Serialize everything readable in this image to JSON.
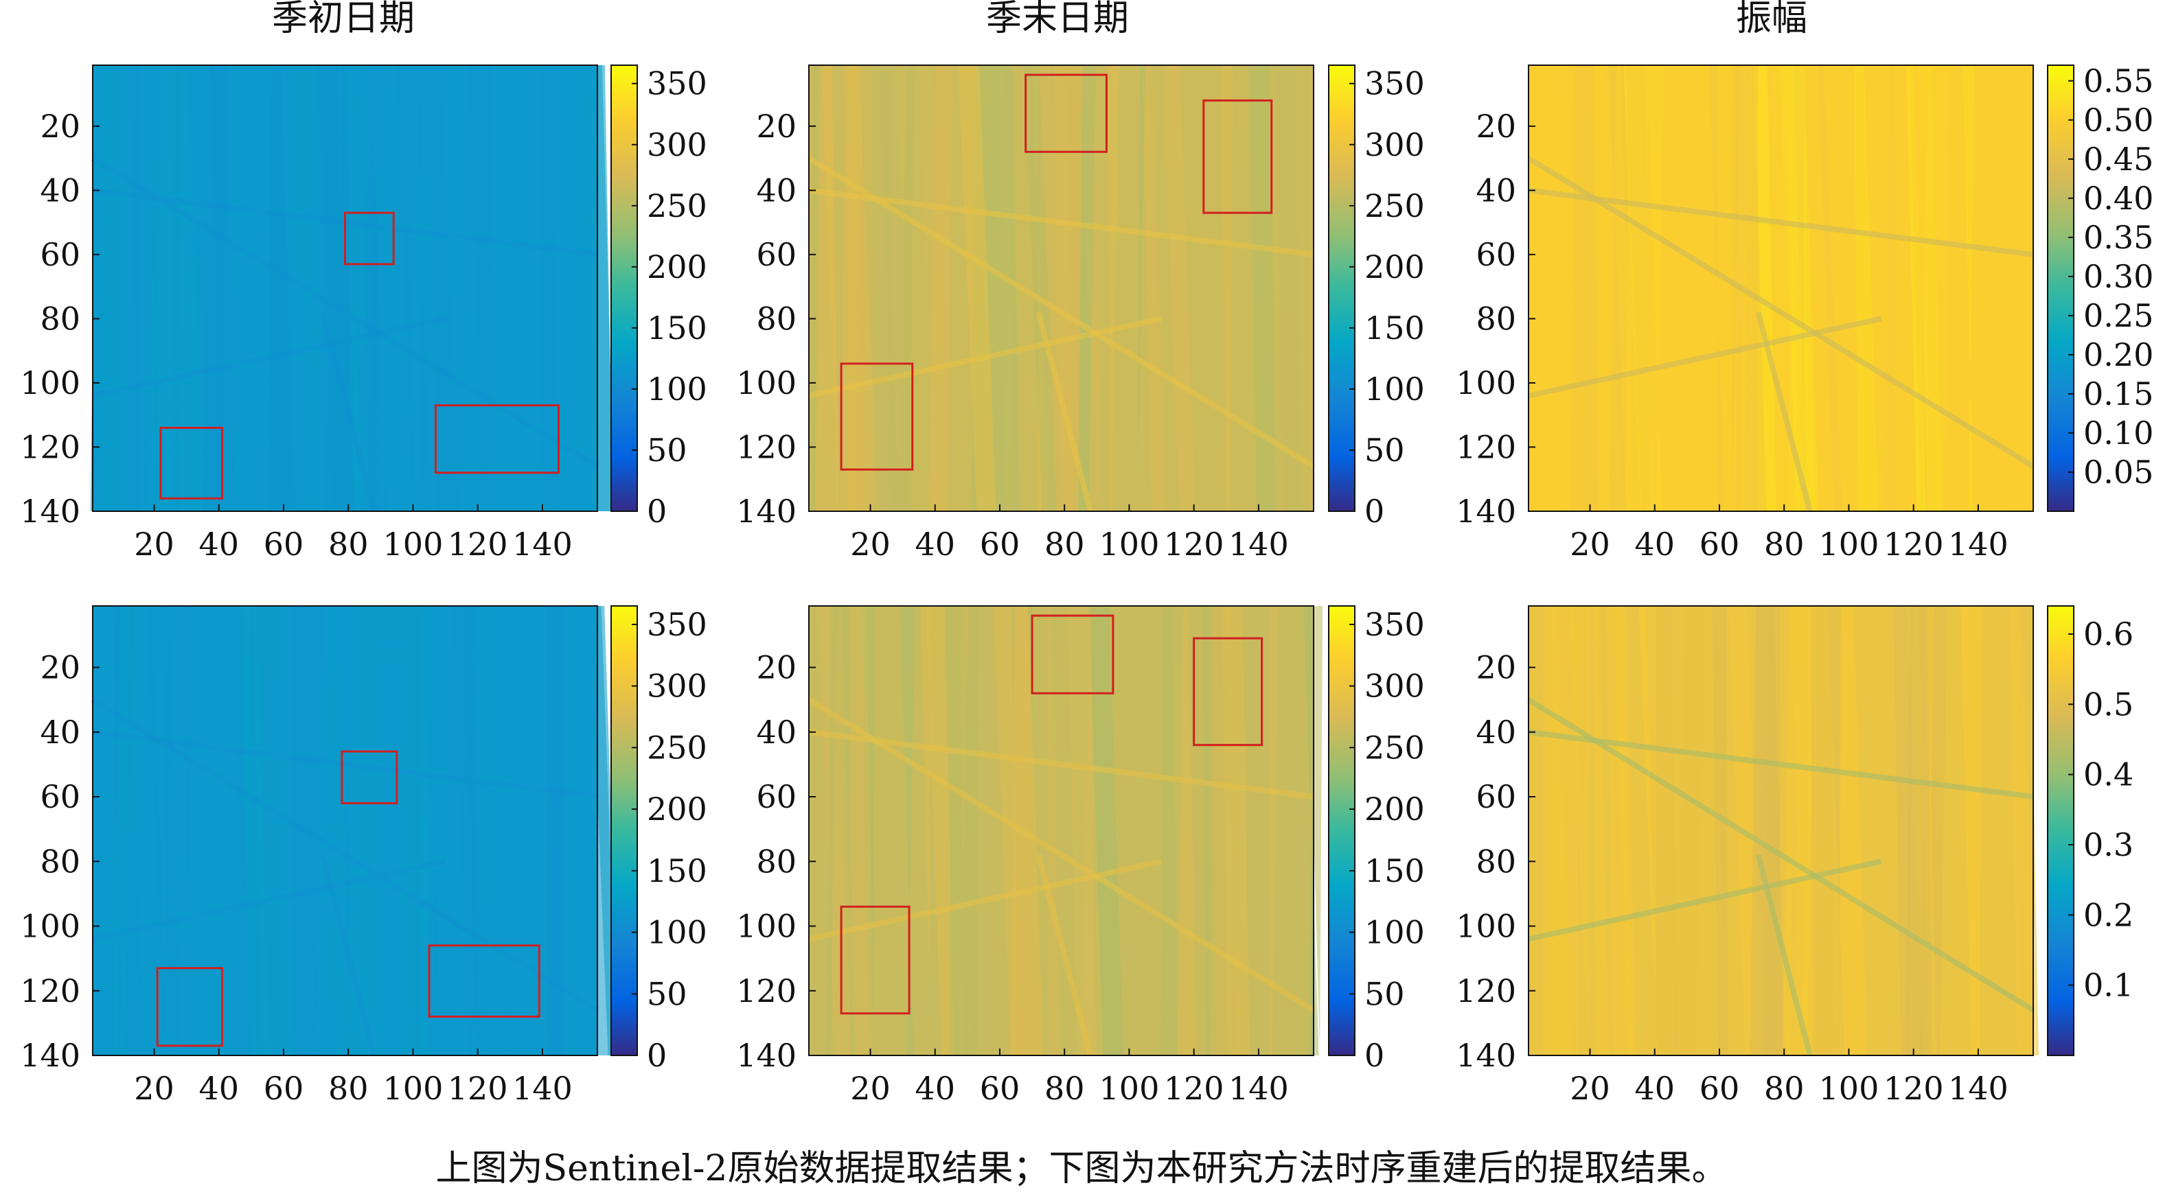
{
  "caption": "上图为Sentinel-2原始数据提取结果；下图为本研究方法时序重建后的提取结果。",
  "panel_titles": [
    "季初日期",
    "季末日期",
    "振幅"
  ],
  "chart_data": [
    {
      "type": "heatmap",
      "row": "top",
      "col": 0,
      "title": "季初日期",
      "x_ticks": [
        20,
        40,
        60,
        80,
        100,
        120,
        140
      ],
      "y_ticks": [
        20,
        40,
        60,
        80,
        100,
        120,
        140
      ],
      "xlim": [
        1,
        157
      ],
      "ylim": [
        1,
        140
      ],
      "colorbar": {
        "range": [
          0,
          365
        ],
        "ticks": [
          0,
          50,
          100,
          150,
          200,
          250,
          300,
          350
        ],
        "labels": [
          "0",
          "50",
          "100",
          "150",
          "200",
          "250",
          "300",
          "350"
        ]
      },
      "dominant_value": 120,
      "boxes": [
        {
          "x": [
            79,
            94
          ],
          "y": [
            47,
            63
          ]
        },
        {
          "x": [
            22,
            41
          ],
          "y": [
            114,
            136
          ]
        },
        {
          "x": [
            107,
            145
          ],
          "y": [
            107,
            128
          ]
        }
      ]
    },
    {
      "type": "heatmap",
      "row": "top",
      "col": 1,
      "title": "季末日期",
      "x_ticks": [
        20,
        40,
        60,
        80,
        100,
        120,
        140
      ],
      "y_ticks": [
        20,
        40,
        60,
        80,
        100,
        120,
        140
      ],
      "xlim": [
        1,
        157
      ],
      "ylim": [
        1,
        140
      ],
      "colorbar": {
        "range": [
          0,
          365
        ],
        "ticks": [
          0,
          50,
          100,
          150,
          200,
          250,
          300,
          350
        ],
        "labels": [
          "0",
          "50",
          "100",
          "150",
          "200",
          "250",
          "300",
          "350"
        ]
      },
      "dominant_value": 265,
      "boxes": [
        {
          "x": [
            68,
            93
          ],
          "y": [
            4,
            28
          ]
        },
        {
          "x": [
            123,
            144
          ],
          "y": [
            12,
            47
          ]
        },
        {
          "x": [
            11,
            33
          ],
          "y": [
            94,
            127
          ]
        }
      ]
    },
    {
      "type": "heatmap",
      "row": "top",
      "col": 2,
      "title": "振幅",
      "x_ticks": [
        20,
        40,
        60,
        80,
        100,
        120,
        140
      ],
      "y_ticks": [
        20,
        40,
        60,
        80,
        100,
        120,
        140
      ],
      "xlim": [
        1,
        157
      ],
      "ylim": [
        1,
        140
      ],
      "colorbar": {
        "range": [
          0,
          0.57
        ],
        "ticks": [
          0.05,
          0.1,
          0.15,
          0.2,
          0.25,
          0.3,
          0.35,
          0.4,
          0.45,
          0.5,
          0.55
        ],
        "labels": [
          "0.05",
          "0.10",
          "0.15",
          "0.20",
          "0.25",
          "0.30",
          "0.35",
          "0.40",
          "0.45",
          "0.50",
          "0.55"
        ]
      },
      "dominant_value": 0.5,
      "boxes": []
    },
    {
      "type": "heatmap",
      "row": "bottom",
      "col": 0,
      "title": "",
      "x_ticks": [
        20,
        40,
        60,
        80,
        100,
        120,
        140
      ],
      "y_ticks": [
        20,
        40,
        60,
        80,
        100,
        120,
        140
      ],
      "xlim": [
        1,
        157
      ],
      "ylim": [
        1,
        140
      ],
      "colorbar": {
        "range": [
          0,
          365
        ],
        "ticks": [
          0,
          50,
          100,
          150,
          200,
          250,
          300,
          350
        ],
        "labels": [
          "0",
          "50",
          "100",
          "150",
          "200",
          "250",
          "300",
          "350"
        ]
      },
      "dominant_value": 120,
      "boxes": [
        {
          "x": [
            78,
            95
          ],
          "y": [
            46,
            62
          ]
        },
        {
          "x": [
            21,
            41
          ],
          "y": [
            113,
            137
          ]
        },
        {
          "x": [
            105,
            139
          ],
          "y": [
            106,
            128
          ]
        }
      ]
    },
    {
      "type": "heatmap",
      "row": "bottom",
      "col": 1,
      "title": "",
      "x_ticks": [
        20,
        40,
        60,
        80,
        100,
        120,
        140
      ],
      "y_ticks": [
        20,
        40,
        60,
        80,
        100,
        120,
        140
      ],
      "xlim": [
        1,
        157
      ],
      "ylim": [
        1,
        140
      ],
      "colorbar": {
        "range": [
          0,
          365
        ],
        "ticks": [
          0,
          50,
          100,
          150,
          200,
          250,
          300,
          350
        ],
        "labels": [
          "0",
          "50",
          "100",
          "150",
          "200",
          "250",
          "300",
          "350"
        ]
      },
      "dominant_value": 262,
      "boxes": [
        {
          "x": [
            70,
            95
          ],
          "y": [
            4,
            28
          ]
        },
        {
          "x": [
            120,
            141
          ],
          "y": [
            11,
            44
          ]
        },
        {
          "x": [
            11,
            32
          ],
          "y": [
            94,
            127
          ]
        }
      ]
    },
    {
      "type": "heatmap",
      "row": "bottom",
      "col": 2,
      "title": "",
      "x_ticks": [
        20,
        40,
        60,
        80,
        100,
        120,
        140
      ],
      "y_ticks": [
        20,
        40,
        60,
        80,
        100,
        120,
        140
      ],
      "xlim": [
        1,
        157
      ],
      "ylim": [
        1,
        140
      ],
      "colorbar": {
        "range": [
          0,
          0.64
        ],
        "ticks": [
          0.1,
          0.2,
          0.3,
          0.4,
          0.5,
          0.6
        ],
        "labels": [
          "0.1",
          "0.2",
          "0.3",
          "0.4",
          "0.5",
          "0.6"
        ]
      },
      "dominant_value": 0.52,
      "boxes": []
    }
  ]
}
